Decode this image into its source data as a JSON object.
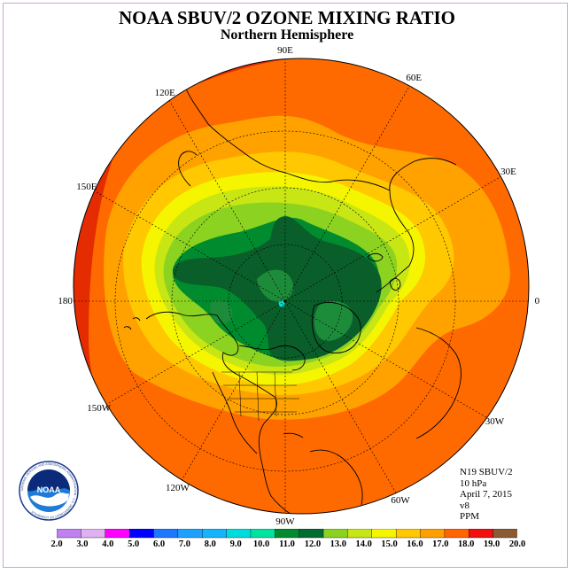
{
  "header": {
    "title": "NOAA SBUV/2 OZONE MIXING RATIO",
    "subtitle": "Northern Hemisphere"
  },
  "longitude_labels": [
    {
      "text": "90E",
      "lon": 90
    },
    {
      "text": "60E",
      "lon": 60
    },
    {
      "text": "30E",
      "lon": 30
    },
    {
      "text": "0",
      "lon": 0
    },
    {
      "text": "30W",
      "lon": -30
    },
    {
      "text": "60W",
      "lon": -60
    },
    {
      "text": "90W",
      "lon": -90
    },
    {
      "text": "120W",
      "lon": -120
    },
    {
      "text": "150W",
      "lon": -150
    },
    {
      "text": "180",
      "lon": 180
    },
    {
      "text": "150E",
      "lon": 150
    },
    {
      "text": "120E",
      "lon": 120
    }
  ],
  "info": {
    "instrument": "N19 SBUV/2",
    "pressure": "10 hPa",
    "date": "April 7, 2015",
    "version": "v8",
    "units": "PPM"
  },
  "logo": {
    "text": "NOAA",
    "ring_text": "NATIONAL OCEANIC AND ATMOSPHERIC ADMINISTRATION · U.S. DEPARTMENT OF COMMERCE"
  },
  "colors": {
    "ocean_outer": "#e52b00",
    "coastline": "#000000",
    "frame": "#c9a6d8"
  },
  "colorbar": {
    "ticks": [
      "2.0",
      "3.0",
      "4.0",
      "5.0",
      "6.0",
      "7.0",
      "8.0",
      "9.0",
      "10.0",
      "11.0",
      "12.0",
      "13.0",
      "14.0",
      "15.0",
      "16.0",
      "17.0",
      "18.0",
      "19.0",
      "20.0"
    ],
    "colors": [
      "#c080f0",
      "#e0b0f0",
      "#ff00ff",
      "#0000ff",
      "#1e78ff",
      "#1ea0ff",
      "#14b4ff",
      "#00dcdc",
      "#00e4a0",
      "#008c2e",
      "#006c30",
      "#8cd220",
      "#c8e614",
      "#f5f500",
      "#ffc800",
      "#ffa000",
      "#ff6400",
      "#f01010",
      "#8b5a32"
    ]
  }
}
